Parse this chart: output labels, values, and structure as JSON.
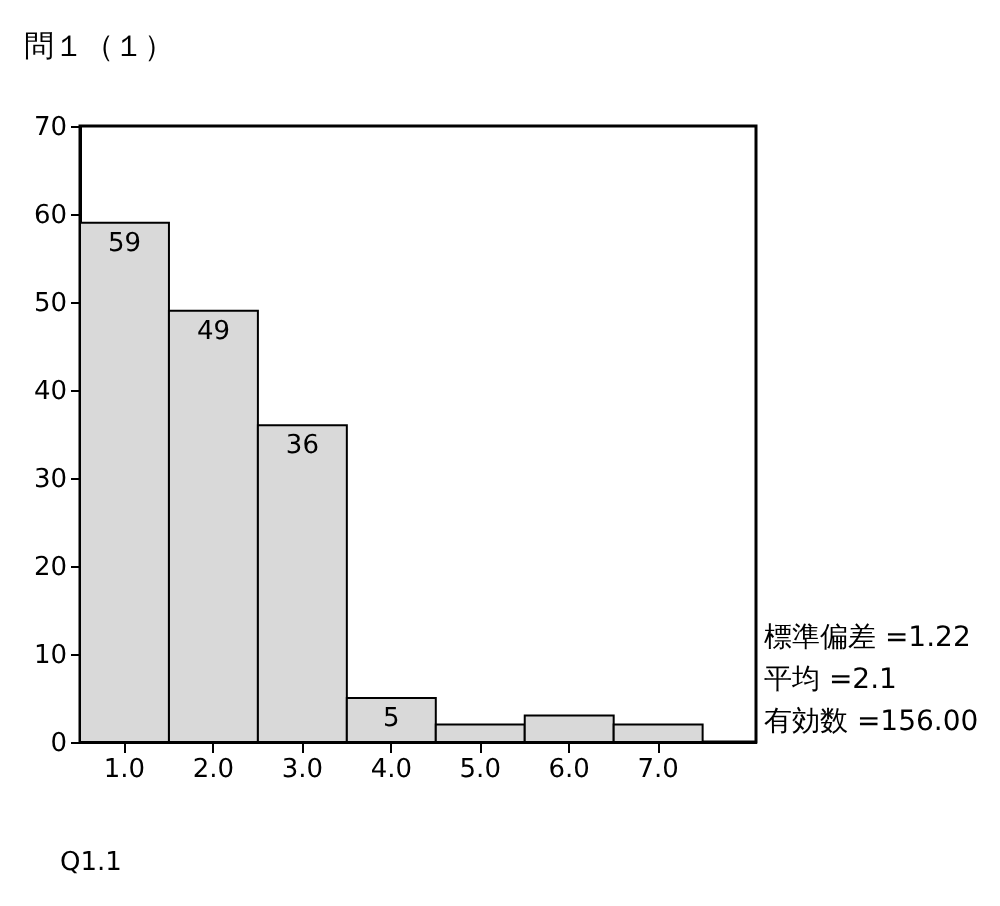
{
  "chart_data": {
    "type": "bar",
    "title": "問１（１）",
    "xlabel": "Q1.1",
    "categories": [
      "1.0",
      "2.0",
      "3.0",
      "4.0",
      "5.0",
      "6.0",
      "7.0"
    ],
    "values": [
      59,
      49,
      36,
      5,
      2,
      3,
      2
    ],
    "value_labels": [
      "59",
      "49",
      "36",
      "5",
      null,
      null,
      null
    ],
    "color": "#d9d9d9",
    "ylim": [
      0,
      70
    ],
    "yticks": [
      0,
      10,
      20,
      30,
      40,
      50,
      60,
      70
    ],
    "grid": false,
    "annotations": [
      "標準偏差 =1.22",
      "平均 =2.1",
      "有効数 =156.00"
    ]
  }
}
